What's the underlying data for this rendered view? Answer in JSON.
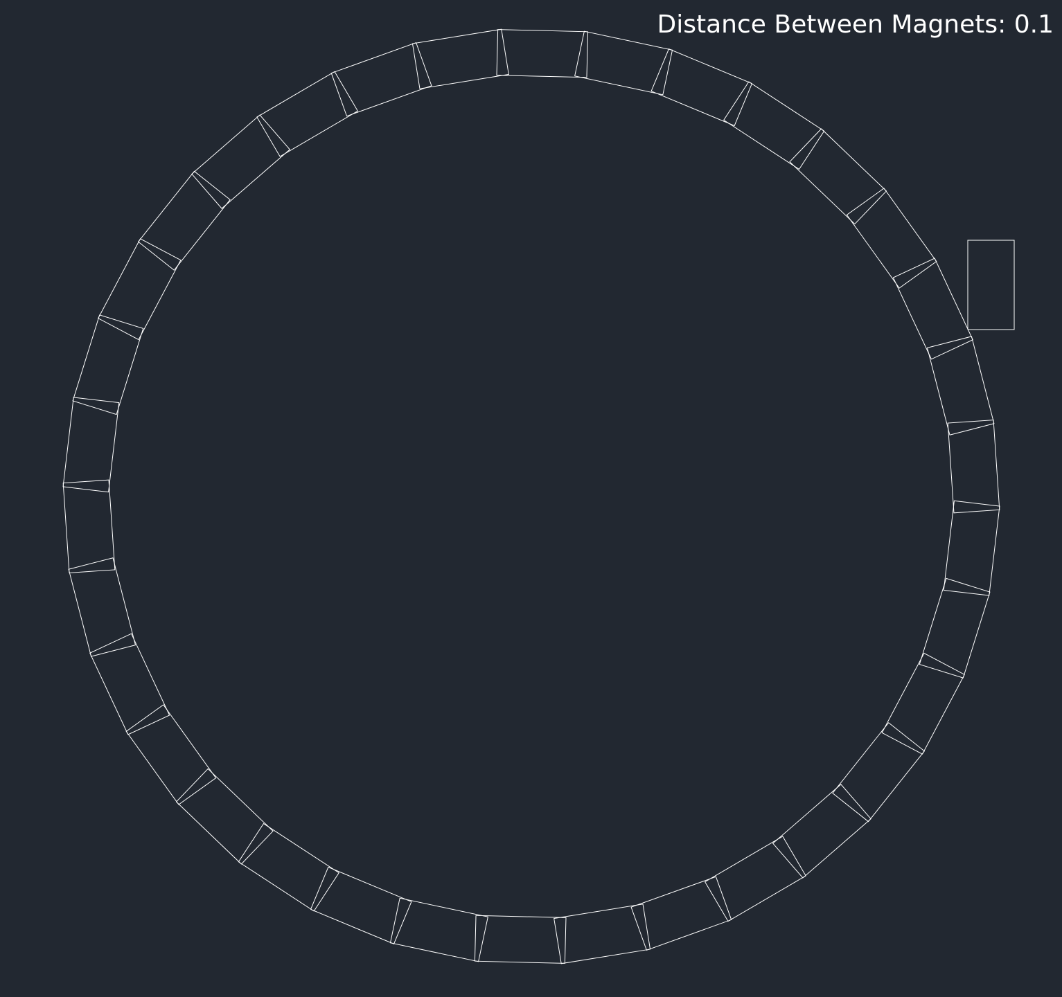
{
  "readout": {
    "label": "Distance Between Magnets:",
    "value": "0.1"
  },
  "colors": {
    "background": "#222831",
    "magnet_outline": "#ffffff",
    "text": "#ffffff"
  },
  "magnet_count": 34
}
